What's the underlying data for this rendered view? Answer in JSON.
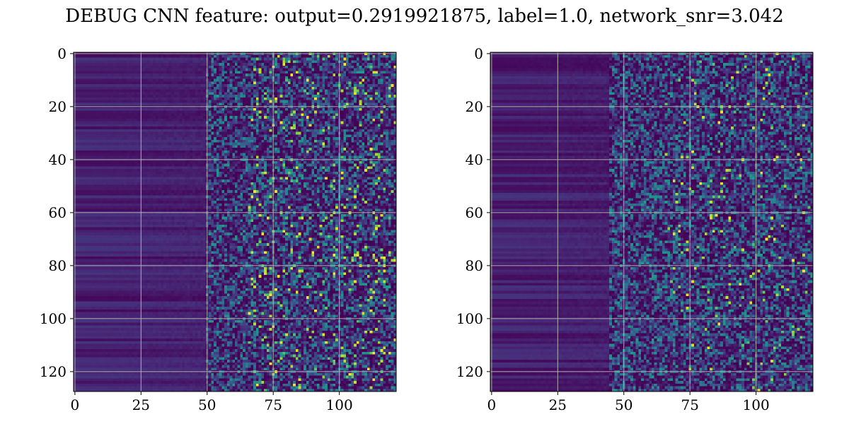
{
  "figure": {
    "title": "DEBUG CNN feature: output=0.2919921875, label=1.0, network_snr=3.042"
  },
  "chart_data": [
    {
      "type": "heatmap",
      "colormap": "viridis",
      "rows": 128,
      "cols": 122,
      "x_ticks": [
        0,
        25,
        50,
        75,
        100
      ],
      "y_ticks": [
        0,
        20,
        40,
        60,
        80,
        100,
        120
      ],
      "xlim": [
        -0.5,
        121.5
      ],
      "ylim": [
        127.5,
        -0.5
      ],
      "grid": true,
      "value_range": [
        0,
        1
      ],
      "structure": "low horizontal-band intensity for columns 0-50, rising toward random speckle for columns 50-121 with bright yellow spots around columns 70-115",
      "seed": 7
    },
    {
      "type": "heatmap",
      "colormap": "viridis",
      "rows": 128,
      "cols": 122,
      "x_ticks": [
        0,
        25,
        50,
        75,
        100
      ],
      "y_ticks": [
        0,
        20,
        40,
        60,
        80,
        100,
        120
      ],
      "xlim": [
        -0.5,
        121.5
      ],
      "ylim": [
        127.5,
        -0.5
      ],
      "grid": true,
      "value_range": [
        0,
        1
      ],
      "structure": "low horizontal-band intensity for columns 0-45, moderate speckle for columns 45-121 with fewer bright spots",
      "seed": 13
    }
  ]
}
